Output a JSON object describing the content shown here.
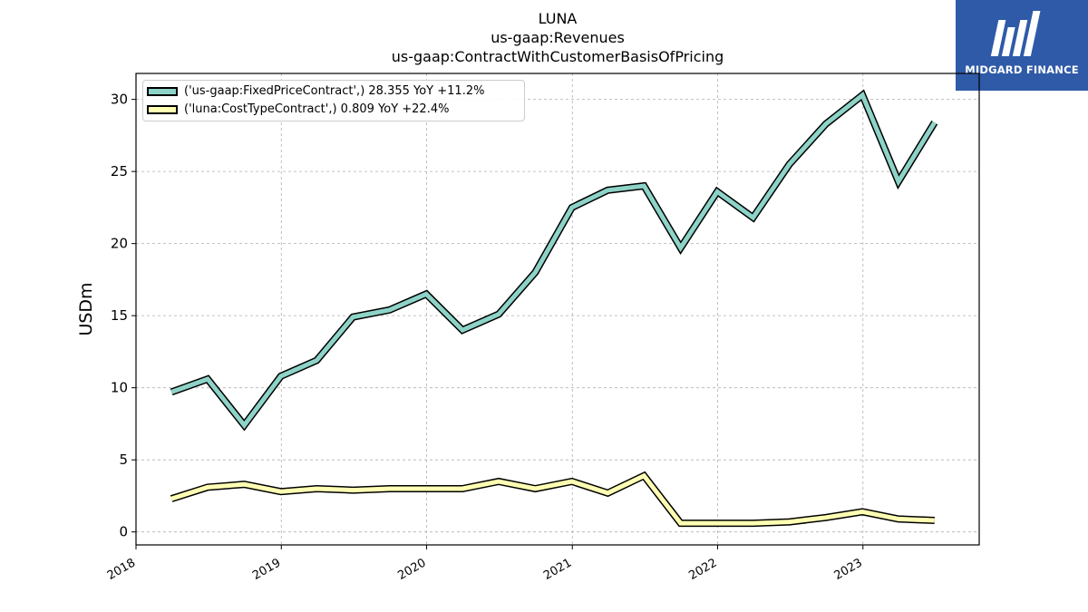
{
  "title_lines": [
    "LUNA",
    "us-gaap:Revenues",
    "us-gaap:ContractWithCustomerBasisOfPricing"
  ],
  "brand": {
    "name": "MIDGARD FINANCE",
    "color": "#2f5aa8"
  },
  "chart_data": {
    "type": "line",
    "title": "LUNA\nus-gaap:Revenues\nus-gaap:ContractWithCustomerBasisOfPricing",
    "xlabel": "",
    "ylabel": "USDm",
    "x": [
      "2018-03-31",
      "2018-06-30",
      "2018-09-30",
      "2018-12-31",
      "2019-03-31",
      "2019-06-30",
      "2019-09-30",
      "2019-12-31",
      "2020-03-31",
      "2020-06-30",
      "2020-09-30",
      "2020-12-31",
      "2021-03-31",
      "2021-06-30",
      "2021-09-30",
      "2021-12-31",
      "2022-03-31",
      "2022-06-30",
      "2022-09-30",
      "2022-12-31",
      "2023-03-31",
      "2023-06-30"
    ],
    "series": [
      {
        "name": "('us-gaap:FixedPriceContract',) 28.355 YoY +11.2%",
        "color": "#8dd3c7",
        "values": [
          9.7,
          10.6,
          7.4,
          10.8,
          11.9,
          14.9,
          15.4,
          16.5,
          14.0,
          15.1,
          18.0,
          22.5,
          23.7,
          24.0,
          19.7,
          23.6,
          21.8,
          25.5,
          28.3,
          30.3,
          24.3,
          28.4
        ]
      },
      {
        "name": "('luna:CostTypeContract',) 0.809 YoY +22.4%",
        "color": "#ffffb3",
        "values": [
          2.3,
          3.1,
          3.3,
          2.8,
          3.0,
          2.9,
          3.0,
          3.0,
          3.0,
          3.5,
          3.0,
          3.5,
          2.7,
          3.9,
          0.6,
          0.6,
          0.6,
          0.7,
          1.0,
          1.4,
          0.9,
          0.8
        ]
      }
    ],
    "xticks": [
      "2018",
      "2019",
      "2020",
      "2021",
      "2022",
      "2023"
    ],
    "yticks": [
      0,
      5,
      10,
      15,
      20,
      25,
      30
    ],
    "xlim": [
      "2018-01-01",
      "2023-10-20"
    ],
    "ylim": [
      -0.9,
      31.8
    ],
    "grid": true,
    "legend": "upper-left"
  }
}
